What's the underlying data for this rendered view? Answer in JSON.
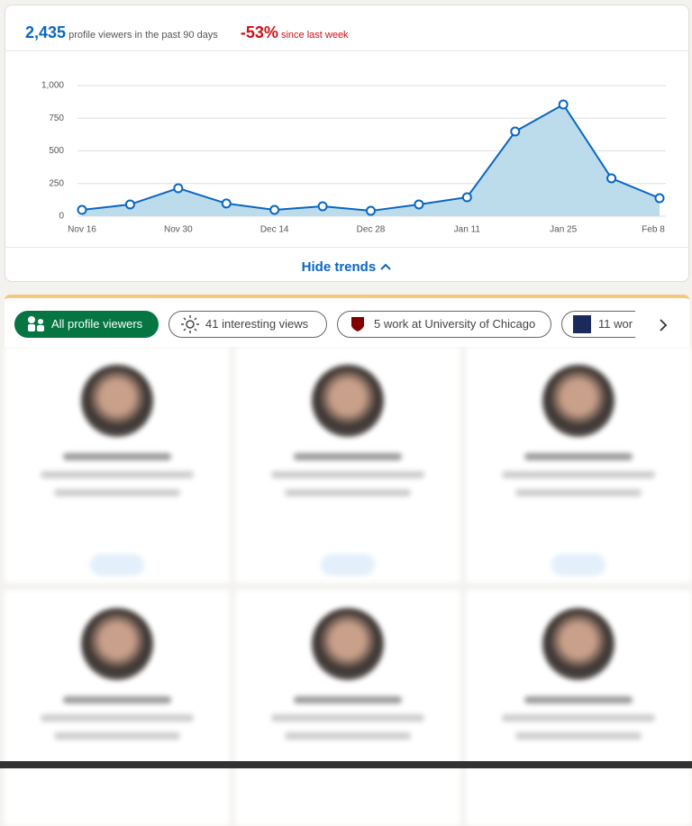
{
  "summary": {
    "viewers": "2,435",
    "viewers_text": "profile viewers in the past 90 days",
    "change": "-53%",
    "change_text": "since last week"
  },
  "chart_data": {
    "type": "area",
    "categories": [
      "Nov 16",
      null,
      "Nov 30",
      null,
      "Dec 14",
      null,
      "Dec 28",
      null,
      "Jan 11",
      null,
      "Jan 25",
      null,
      "Feb 8"
    ],
    "values": [
      48,
      90,
      214,
      97,
      48,
      76,
      41,
      90,
      145,
      648,
      855,
      290,
      138
    ],
    "color": "#0a66c2",
    "fill": "#bcdcec",
    "ylim": [
      0,
      1000
    ],
    "yticks": [
      0,
      250,
      500,
      750,
      {
        "value": 1000,
        "label": "1,000"
      }
    ],
    "grid": true
  },
  "toggle": "Hide trends",
  "filters": [
    "All profile viewers",
    "41 interesting views",
    "5 work at University of Chicago",
    "11 wor"
  ]
}
